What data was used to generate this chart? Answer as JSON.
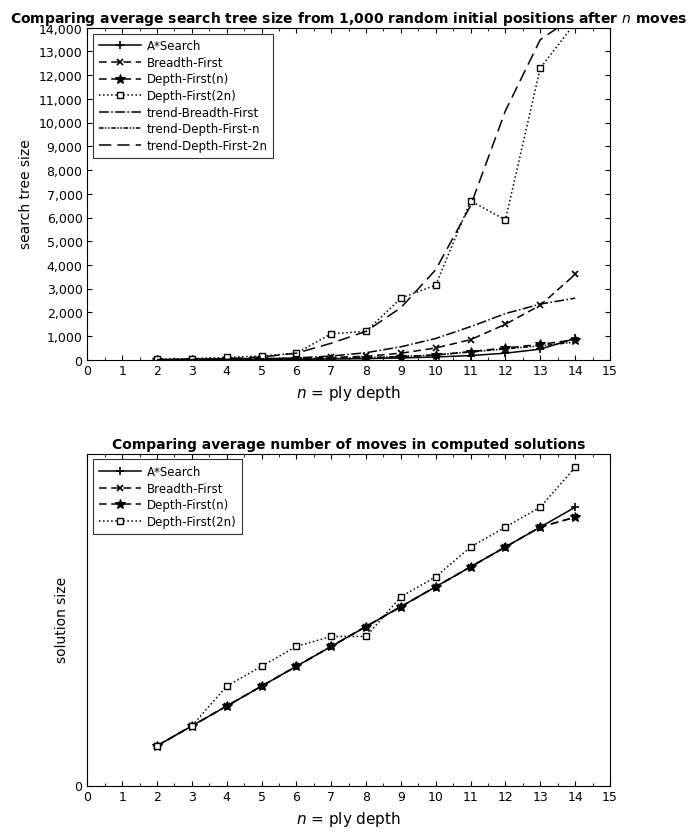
{
  "title1": "Comparing average search tree size from 1,000 random initial positions after $n$ moves",
  "title2": "Comparing average number of moves in computed solutions",
  "xlabel": "$n$ = ply depth",
  "ylabel1": "search tree size",
  "ylabel2": "solution size",
  "x": [
    2,
    3,
    4,
    5,
    6,
    7,
    8,
    9,
    10,
    11,
    12,
    13,
    14
  ],
  "astar_tree": [
    5,
    10,
    15,
    20,
    25,
    35,
    50,
    80,
    120,
    180,
    280,
    450,
    900
  ],
  "breadth_tree": [
    10,
    20,
    30,
    50,
    80,
    100,
    150,
    280,
    500,
    850,
    1500,
    2300,
    3600
  ],
  "depth_n_tree": [
    5,
    10,
    15,
    20,
    30,
    50,
    80,
    130,
    200,
    350,
    500,
    650,
    850
  ],
  "depth_2n_tree": [
    20,
    50,
    100,
    160,
    280,
    1100,
    1200,
    2600,
    3150,
    6700,
    5900,
    12300,
    14200
  ],
  "trend_breadth_tree": [
    5,
    10,
    20,
    40,
    80,
    160,
    300,
    550,
    900,
    1400,
    1950,
    2350,
    2600
  ],
  "trend_depth_n_tree": [
    3,
    6,
    10,
    18,
    30,
    55,
    90,
    140,
    210,
    330,
    460,
    590,
    750
  ],
  "trend_depth_2n_tree": [
    8,
    20,
    50,
    120,
    280,
    700,
    1200,
    2200,
    3800,
    6500,
    10500,
    13500,
    14500
  ],
  "astar_sol": [
    2,
    3,
    4,
    5,
    6,
    7,
    8,
    9,
    10,
    11,
    12,
    13,
    14
  ],
  "breadth_sol": [
    2,
    3,
    4,
    5,
    6,
    7,
    8,
    9,
    10,
    11,
    12,
    13,
    13.5
  ],
  "depth_n_sol": [
    2,
    3,
    4,
    5,
    6,
    7,
    8,
    9,
    10,
    11,
    12,
    13,
    13.5
  ],
  "depth_2n_sol": [
    2,
    3,
    5,
    6,
    7,
    7.5,
    7.5,
    9.5,
    10.5,
    12,
    13,
    14,
    16
  ],
  "bg_color": "#ffffff"
}
